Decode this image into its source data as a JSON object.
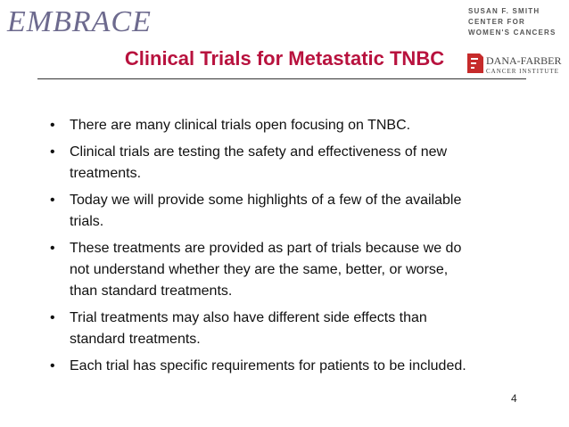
{
  "header": {
    "left_logo": "EMBRACE",
    "right_logo": [
      "SUSAN F. SMITH",
      "CENTER FOR",
      "WOMEN'S CANCERS",
      "DANA-FARBER",
      "CANCER INSTITUTE"
    ]
  },
  "title": "Clinical Trials for Metastatic TNBC",
  "bullets": [
    [
      "There are many clinical trials open focusing on TNBC."
    ],
    [
      "Clinical trials are testing the safety and effectiveness of new",
      "treatments."
    ],
    [
      "Today we will provide some highlights of a few of the available",
      "trials."
    ],
    [
      "These treatments are provided as part of trials because we do",
      "not understand whether they are the same, better, or worse,",
      "than standard treatments."
    ],
    [
      "Trial treatments may also have different side effects than",
      "standard treatments."
    ],
    [
      "Each trial has specific requirements for patients to be included."
    ]
  ],
  "page_number": "4"
}
